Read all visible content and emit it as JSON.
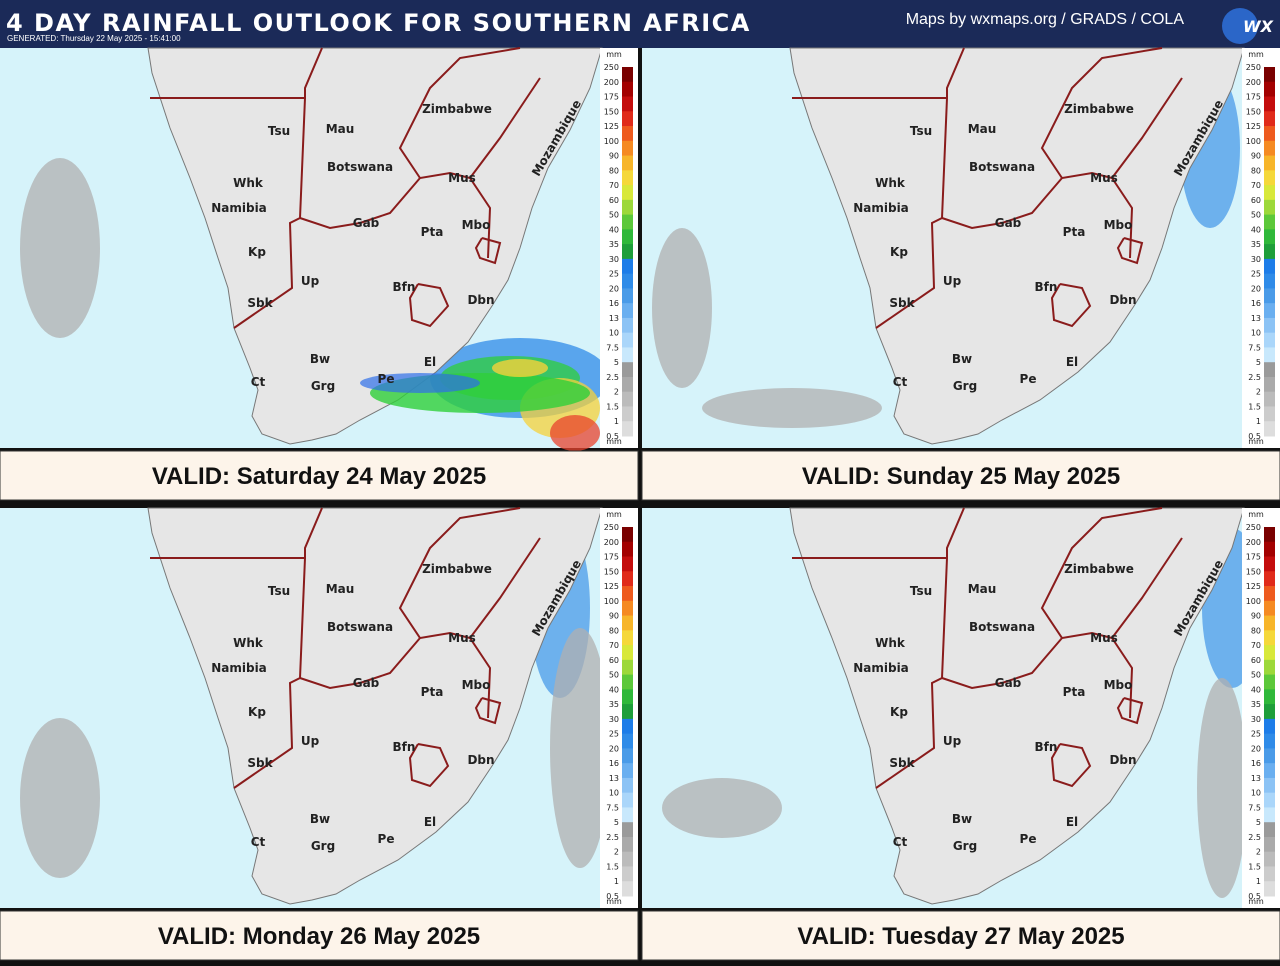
{
  "header": {
    "title": "4 DAY RAINFALL OUTLOOK FOR SOUTHERN AFRICA",
    "generated": "GENERATED: Thursday 22 May 2025 - 15:41:00",
    "credit": "Maps by wxmaps.org / GRADS / COLA",
    "logo": "WX"
  },
  "places": [
    "Tsu",
    "Mau",
    "Zimbabwe",
    "Botswana",
    "Whk",
    "Namibia",
    "Mus",
    "Gab",
    "Pta",
    "Mbo",
    "Kp",
    "Up",
    "Bfn",
    "Dbn",
    "Sbk",
    "Bw",
    "El",
    "Pe",
    "Ct",
    "Grg",
    "Mozambique"
  ],
  "legend": {
    "unit": "mm",
    "labels": [
      "250",
      "200",
      "175",
      "150",
      "125",
      "100",
      "90",
      "80",
      "70",
      "60",
      "50",
      "40",
      "35",
      "30",
      "25",
      "20",
      "16",
      "13",
      "10",
      "7.5",
      "5",
      "2.5",
      "2",
      "1.5",
      "1",
      "0.5"
    ]
  },
  "panels": [
    {
      "valid": "VALID: Saturday 24 May 2025"
    },
    {
      "valid": "VALID: Sunday 25 May 2025"
    },
    {
      "valid": "VALID: Monday 26 May 2025"
    },
    {
      "valid": "VALID: Tuesday 27 May 2025"
    }
  ]
}
